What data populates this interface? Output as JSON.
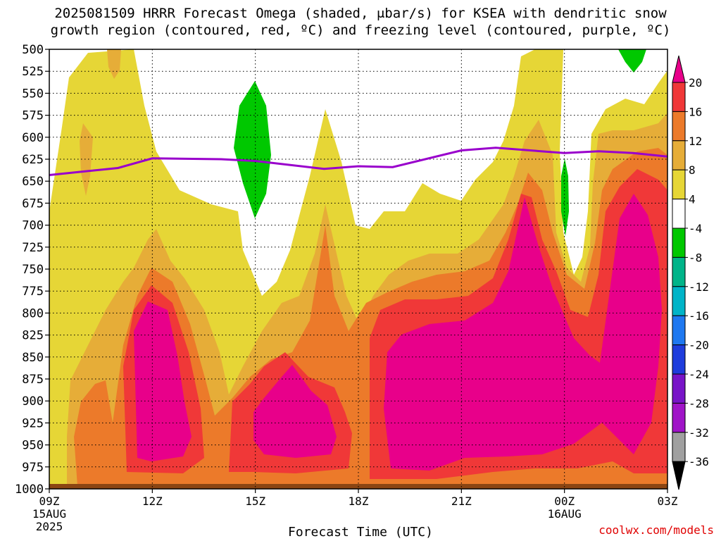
{
  "header": {
    "line1": "2025081509 HRRR Forecast Omega (shaded, μbar/s) for KSEA with dendritic snow",
    "line2": "growth region (contoured, red, ºC) and freezing level (contoured, purple, ºC)"
  },
  "chart_data": {
    "type": "heatmap",
    "xlabel": "Forecast Time (UTC)",
    "x_ticks": [
      {
        "label": "09Z",
        "sub": [
          "15AUG",
          "2025"
        ]
      },
      {
        "label": "12Z",
        "sub": []
      },
      {
        "label": "15Z",
        "sub": []
      },
      {
        "label": "18Z",
        "sub": []
      },
      {
        "label": "21Z",
        "sub": []
      },
      {
        "label": "00Z",
        "sub": [
          "16AUG"
        ]
      },
      {
        "label": "03Z",
        "sub": []
      }
    ],
    "y_ticks": [
      500,
      525,
      550,
      575,
      600,
      625,
      650,
      675,
      700,
      725,
      750,
      775,
      800,
      825,
      850,
      875,
      900,
      925,
      950,
      975,
      1000
    ],
    "colorbar": {
      "labels": [
        20,
        16,
        12,
        8,
        4,
        -4,
        -8,
        -12,
        -16,
        -20,
        -24,
        -28,
        -32,
        -36
      ],
      "colors": [
        "#e8008a",
        "#f03838",
        "#ec7a2a",
        "#e6ad38",
        "#e6d636",
        "#ffffff",
        "#00c800",
        "#00b489",
        "#00b4c8",
        "#1e78f0",
        "#1e3cdc",
        "#7814c8",
        "#a014c8",
        "#a0a0a0",
        "#000000"
      ]
    },
    "freezing_level": {
      "color": "#9900cc",
      "x": [
        "09Z",
        "11Z",
        "12Z",
        "14Z",
        "15Z",
        "17Z",
        "18Z",
        "19Z",
        "21Z",
        "22Z",
        "00Z",
        "01Z",
        "02Z",
        "03Z"
      ],
      "y_hPa": [
        643,
        635,
        624,
        625,
        627,
        636,
        633,
        634,
        615,
        612,
        618,
        616,
        618,
        622
      ]
    },
    "grid": true
  },
  "footer": {
    "credit": "coolwx.com/models"
  }
}
